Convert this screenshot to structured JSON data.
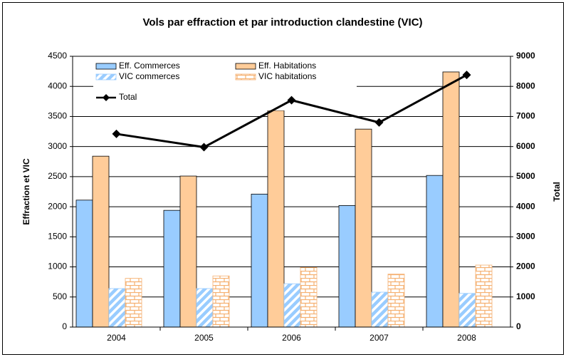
{
  "chart_data": {
    "type": "bar",
    "title": "Vols par effraction et par introduction clandestine (VIC)",
    "ylabel": "Effraction et VIC",
    "y2label": "Total",
    "categories": [
      "2004",
      "2005",
      "2006",
      "2007",
      "2008"
    ],
    "series": [
      {
        "name": "Eff. Commerces",
        "color": "#99ccff",
        "pattern": "solid",
        "values": [
          2110,
          1940,
          2210,
          2020,
          2520
        ]
      },
      {
        "name": "Eff. Habitations",
        "color": "#ffcc99",
        "pattern": "solid",
        "values": [
          2840,
          2510,
          3600,
          3290,
          4240
        ]
      },
      {
        "name": "VIC commerces",
        "color": "#99ccff",
        "pattern": "stripes",
        "values": [
          640,
          640,
          720,
          580,
          560
        ]
      },
      {
        "name": "VIC habitations",
        "color": "#ffcc99",
        "pattern": "brick",
        "values": [
          810,
          850,
          990,
          880,
          1030
        ]
      },
      {
        "name": "Total",
        "color": "#000000",
        "type": "line",
        "axis": "y2",
        "values": [
          6420,
          5980,
          7540,
          6800,
          8380
        ]
      }
    ],
    "ylim": [
      0,
      4500
    ],
    "yticks": [
      0,
      500,
      1000,
      1500,
      2000,
      2500,
      3000,
      3500,
      4000,
      4500
    ],
    "y2lim": [
      0,
      9000
    ],
    "y2ticks": [
      0,
      1000,
      2000,
      3000,
      4000,
      5000,
      6000,
      7000,
      8000,
      9000
    ],
    "grid": true,
    "legend": "upper left"
  }
}
